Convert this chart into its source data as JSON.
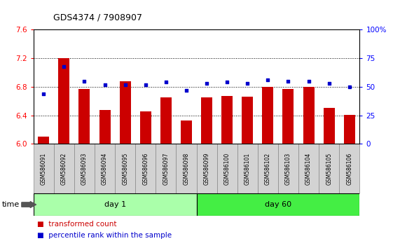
{
  "title": "GDS4374 / 7908907",
  "samples": [
    "GSM586091",
    "GSM586092",
    "GSM586093",
    "GSM586094",
    "GSM586095",
    "GSM586096",
    "GSM586097",
    "GSM586098",
    "GSM586099",
    "GSM586100",
    "GSM586101",
    "GSM586102",
    "GSM586103",
    "GSM586104",
    "GSM586105",
    "GSM586106"
  ],
  "bar_values": [
    6.1,
    7.2,
    6.77,
    6.47,
    6.88,
    6.46,
    6.65,
    6.33,
    6.65,
    6.67,
    6.66,
    6.8,
    6.77,
    6.8,
    6.5,
    6.41
  ],
  "dot_values": [
    44,
    68,
    55,
    52,
    52,
    52,
    54,
    47,
    53,
    54,
    53,
    56,
    55,
    55,
    53,
    50
  ],
  "ylim_left": [
    6.0,
    7.6
  ],
  "ylim_right": [
    0,
    100
  ],
  "yticks_left": [
    6.0,
    6.4,
    6.8,
    7.2,
    7.6
  ],
  "yticks_right": [
    0,
    25,
    50,
    75,
    100
  ],
  "bar_color": "#cc0000",
  "dot_color": "#0000cc",
  "day1_color": "#aaffaa",
  "day60_color": "#44ee44",
  "day1_samples": 8,
  "day60_samples": 8,
  "bg_color": "#ffffff",
  "label_box_color": "#d3d3d3",
  "legend_red_label": "transformed count",
  "legend_blue_label": "percentile rank within the sample",
  "time_label": "time"
}
